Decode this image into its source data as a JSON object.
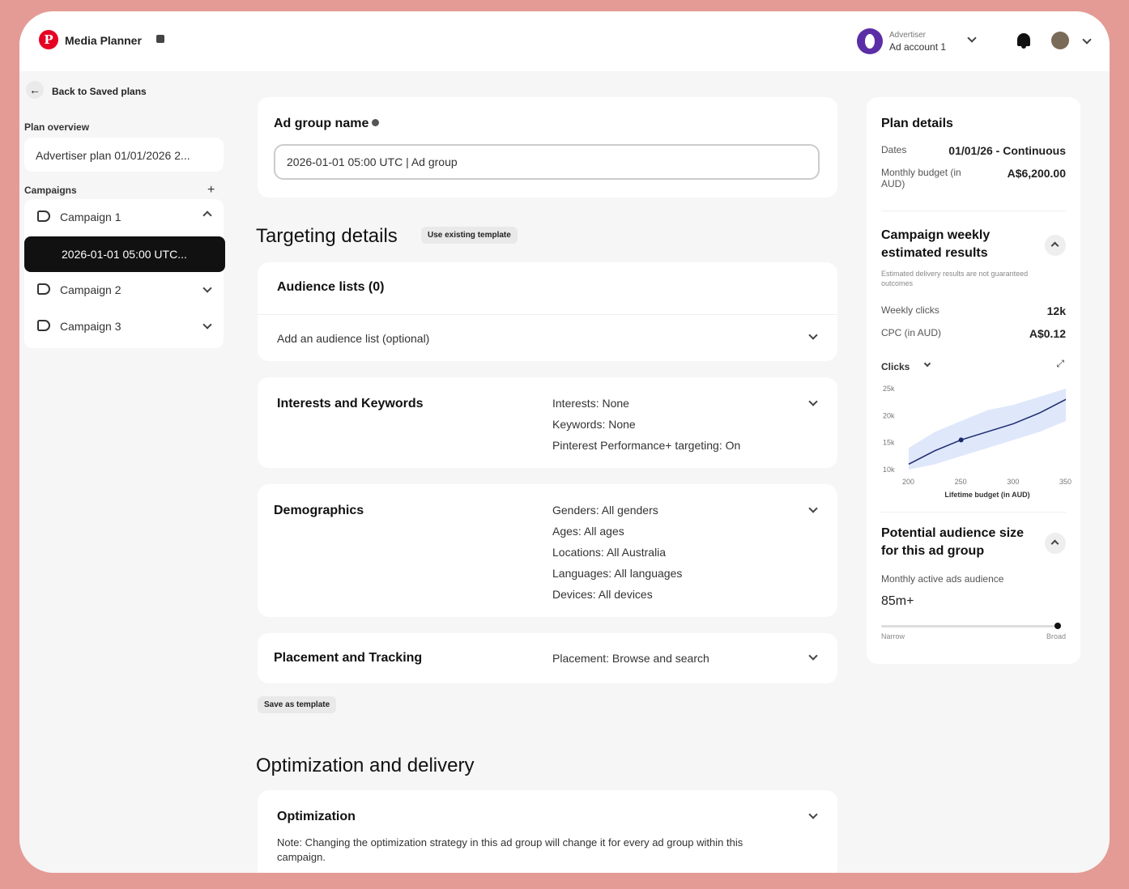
{
  "header": {
    "app_title": "Media Planner",
    "account_label": "Advertiser",
    "account_name": "Ad account 1"
  },
  "sidebar": {
    "back_label": "Back to Saved plans",
    "plan_overview_label": "Plan overview",
    "plan_name": "Advertiser plan 01/01/2026 2...",
    "campaigns_label": "Campaigns",
    "campaigns": [
      {
        "label": "Campaign 1"
      },
      {
        "label": "Campaign 2"
      },
      {
        "label": "Campaign 3"
      }
    ],
    "active_ad_group": "2026-01-01 05:00 UTC..."
  },
  "main": {
    "ad_group_name_label": "Ad group name",
    "ad_group_name_value": "2026-01-01 05:00 UTC | Ad group",
    "targeting_heading": "Targeting details",
    "use_template_label": "Use existing template",
    "audience_title": "Audience lists (0)",
    "audience_add": "Add an audience list (optional)",
    "interests_title": "Interests and Keywords",
    "interests_summary": [
      "Interests: None",
      "Keywords: None",
      "Pinterest Performance+ targeting: On"
    ],
    "demographics_title": "Demographics",
    "demographics_summary": [
      "Genders: All genders",
      "Ages: All ages",
      "Locations: All Australia",
      "Languages: All languages",
      "Devices: All devices"
    ],
    "placement_title": "Placement and Tracking",
    "placement_summary": "Placement: Browse and search",
    "save_template_label": "Save as template",
    "optimization_heading": "Optimization and delivery",
    "optimization_title": "Optimization",
    "optimization_note": "Note: Changing the optimization strategy in this ad group will change it for every ad group within this campaign."
  },
  "right_panel": {
    "plan_details_title": "Plan details",
    "dates_label": "Dates",
    "dates_value": "01/01/26 - Continuous",
    "budget_label": "Monthly budget (in AUD)",
    "budget_value": "A$6,200.00",
    "weekly_title": "Campaign weekly estimated results",
    "weekly_note": "Estimated delivery results are not guaranteed outcomes",
    "weekly_clicks_label": "Weekly clicks",
    "weekly_clicks_value": "12k",
    "cpc_label": "CPC (in AUD)",
    "cpc_value": "A$0.12",
    "chart_metric": "Clicks",
    "audience_title": "Potential audience size for this ad group",
    "audience_sub": "Monthly active ads audience",
    "audience_value": "85m+",
    "range_min": "Narrow",
    "range_max": "Broad"
  },
  "chart_data": {
    "type": "line",
    "xlabel": "Lifetime budget (in AUD)",
    "ylabel": "",
    "x_ticks": [
      "200",
      "250",
      "300",
      "350"
    ],
    "y_ticks": [
      "25k",
      "20k",
      "15k",
      "10k"
    ],
    "xlim": [
      200,
      350
    ],
    "ylim": [
      10,
      25
    ],
    "series": [
      {
        "x": [
          200,
          225,
          250,
          275,
          300,
          325,
          350
        ],
        "y": [
          11,
          13.5,
          15.5,
          17,
          18.5,
          20.5,
          23
        ]
      }
    ],
    "band_upper": [
      14,
      17,
      19,
      21,
      22,
      23.5,
      25
    ],
    "band_lower": [
      10,
      11,
      12.5,
      14,
      15.5,
      17,
      19
    ],
    "highlight_x": 250,
    "highlight_y": 15.5,
    "grid": false
  },
  "colors": {
    "brand": "#e60023",
    "background": "#e49b95",
    "chart_line": "#1a2a6c",
    "chart_band": "#dfe7fb"
  }
}
